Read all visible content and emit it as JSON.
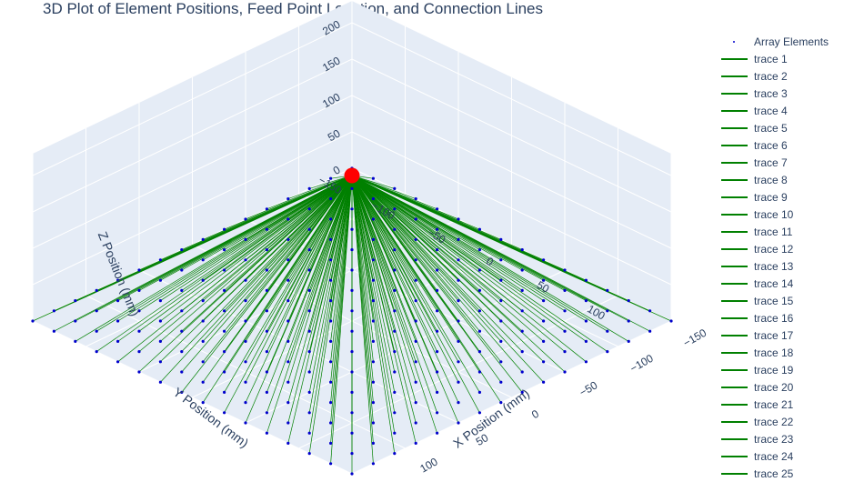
{
  "chart_data": {
    "type": "scatter",
    "title": "3D Plot of Element Positions, Feed Point Location, and Connection Lines",
    "xlabel": "X Position (mm)",
    "ylabel": "Y Position (mm)",
    "zlabel": "Z Position (mm)",
    "xlim": [
      -150,
      150
    ],
    "ylim": [
      -150,
      150
    ],
    "zlim": [
      0,
      230
    ],
    "x_ticks": [
      "−150",
      "−100",
      "−50",
      "0",
      "50",
      "100"
    ],
    "y_ticks": [
      "−150",
      "−100",
      "−50",
      "0",
      "50",
      "100"
    ],
    "z_ticks": [
      "0",
      "50",
      "100",
      "150",
      "200"
    ],
    "grid": true,
    "legend_position": "right",
    "elements": {
      "name": "Array Elements",
      "color": "#0000cc",
      "grid_count": 16,
      "start": -150,
      "step": 20,
      "z": 0
    },
    "feed_point": {
      "x": 0,
      "y": 0,
      "z": 200,
      "color": "#ff0000"
    },
    "connection_color": "#008000",
    "legend": [
      {
        "name": "Array Elements",
        "kind": "marker"
      },
      {
        "name": "trace 1",
        "kind": "line"
      },
      {
        "name": "trace 2",
        "kind": "line"
      },
      {
        "name": "trace 3",
        "kind": "line"
      },
      {
        "name": "trace 4",
        "kind": "line"
      },
      {
        "name": "trace 5",
        "kind": "line"
      },
      {
        "name": "trace 6",
        "kind": "line"
      },
      {
        "name": "trace 7",
        "kind": "line"
      },
      {
        "name": "trace 8",
        "kind": "line"
      },
      {
        "name": "trace 9",
        "kind": "line"
      },
      {
        "name": "trace 10",
        "kind": "line"
      },
      {
        "name": "trace 11",
        "kind": "line"
      },
      {
        "name": "trace 12",
        "kind": "line"
      },
      {
        "name": "trace 13",
        "kind": "line"
      },
      {
        "name": "trace 14",
        "kind": "line"
      },
      {
        "name": "trace 15",
        "kind": "line"
      },
      {
        "name": "trace 16",
        "kind": "line"
      },
      {
        "name": "trace 17",
        "kind": "line"
      },
      {
        "name": "trace 18",
        "kind": "line"
      },
      {
        "name": "trace 19",
        "kind": "line"
      },
      {
        "name": "trace 20",
        "kind": "line"
      },
      {
        "name": "trace 21",
        "kind": "line"
      },
      {
        "name": "trace 22",
        "kind": "line"
      },
      {
        "name": "trace 23",
        "kind": "line"
      },
      {
        "name": "trace 24",
        "kind": "line"
      },
      {
        "name": "trace 25",
        "kind": "line"
      }
    ]
  }
}
